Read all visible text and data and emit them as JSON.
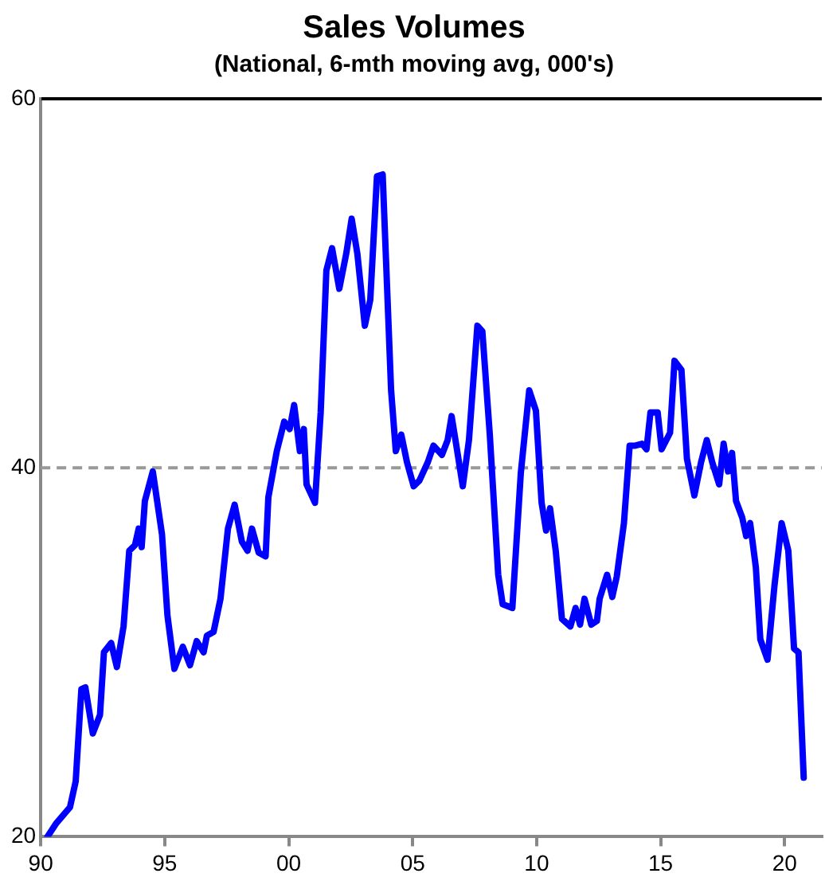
{
  "chart_data": {
    "type": "line",
    "title": "Sales Volumes",
    "subtitle": "(National, 6-mth moving avg, 000's)",
    "x": [
      1990.27,
      1990.61,
      1991.18,
      1991.41,
      1991.64,
      1991.8,
      1992.1,
      1992.39,
      1992.55,
      1992.84,
      1993.07,
      1993.34,
      1993.57,
      1993.8,
      1993.95,
      1994.07,
      1994.2,
      1994.52,
      1994.89,
      1995.11,
      1995.39,
      1995.73,
      1996.02,
      1996.29,
      1996.57,
      1996.7,
      1996.97,
      1997.25,
      1997.55,
      1997.82,
      1998.11,
      1998.34,
      1998.52,
      1998.79,
      1999.07,
      1999.18,
      1999.52,
      1999.82,
      2000.04,
      2000.22,
      2000.45,
      2000.61,
      2000.72,
      2001.06,
      2001.29,
      2001.52,
      2001.75,
      2002.04,
      2002.32,
      2002.54,
      2002.77,
      2003.07,
      2003.29,
      2003.56,
      2003.79,
      2004.13,
      2004.32,
      2004.54,
      2004.77,
      2005.04,
      2005.27,
      2005.61,
      2005.84,
      2006.18,
      2006.41,
      2006.57,
      2006.75,
      2007.02,
      2007.27,
      2007.61,
      2007.81,
      2008.11,
      2008.45,
      2008.63,
      2009.02,
      2009.36,
      2009.7,
      2009.97,
      2010.2,
      2010.38,
      2010.54,
      2010.77,
      2011.02,
      2011.36,
      2011.57,
      2011.75,
      2011.93,
      2012.2,
      2012.43,
      2012.54,
      2012.84,
      2013.05,
      2013.23,
      2013.52,
      2013.75,
      2013.98,
      2014.25,
      2014.43,
      2014.59,
      2014.88,
      2015.04,
      2015.38,
      2015.56,
      2015.84,
      2016.06,
      2016.36,
      2016.63,
      2016.86,
      2017.08,
      2017.36,
      2017.54,
      2017.72,
      2017.88,
      2018.04,
      2018.29,
      2018.45,
      2018.61,
      2018.84,
      2019.02,
      2019.31,
      2019.59,
      2019.88,
      2020.15,
      2020.38,
      2020.56,
      2020.77
    ],
    "series": [
      {
        "color": "#0000ff",
        "values": [
          20.0,
          20.7,
          21.6,
          23.0,
          28.0,
          28.1,
          25.6,
          26.6,
          30.0,
          30.5,
          29.2,
          31.4,
          35.5,
          35.8,
          36.7,
          35.7,
          38.2,
          39.8,
          36.4,
          32.0,
          29.1,
          30.3,
          29.3,
          30.6,
          30.0,
          30.9,
          31.1,
          32.9,
          36.7,
          38.0,
          36.0,
          35.5,
          36.7,
          35.4,
          35.2,
          38.4,
          40.9,
          42.5,
          42.1,
          43.4,
          40.9,
          42.1,
          39.1,
          38.1,
          43.0,
          50.7,
          51.9,
          49.7,
          51.6,
          53.5,
          51.6,
          47.7,
          49.1,
          55.8,
          55.9,
          44.2,
          40.9,
          41.8,
          40.3,
          39.0,
          39.3,
          40.3,
          41.2,
          40.7,
          41.5,
          42.8,
          41.3,
          39.0,
          41.5,
          47.7,
          47.4,
          41.8,
          34.2,
          32.6,
          32.4,
          39.7,
          44.2,
          43.1,
          38.1,
          36.6,
          37.8,
          35.5,
          31.8,
          31.4,
          32.4,
          31.5,
          32.9,
          31.5,
          31.7,
          32.9,
          34.2,
          33.0,
          34.1,
          37.0,
          41.2,
          41.2,
          41.3,
          41.0,
          43.0,
          43.0,
          41.0,
          41.9,
          45.8,
          45.3,
          40.5,
          38.5,
          40.3,
          41.5,
          40.3,
          39.1,
          41.3,
          39.8,
          40.8,
          38.2,
          37.3,
          36.3,
          37.0,
          34.6,
          30.7,
          29.6,
          33.6,
          37.0,
          35.5,
          30.2,
          30.0,
          23.2
        ]
      }
    ],
    "xlim": [
      1990,
      2021.5
    ],
    "xticks": [
      {
        "value": 1990,
        "label": "90"
      },
      {
        "value": 1995,
        "label": "95"
      },
      {
        "value": 2000,
        "label": "00"
      },
      {
        "value": 2005,
        "label": "05"
      },
      {
        "value": 2010,
        "label": "10"
      },
      {
        "value": 2015,
        "label": "15"
      },
      {
        "value": 2020,
        "label": "20"
      }
    ],
    "ylim": [
      20,
      60
    ],
    "yticks": [
      20,
      40,
      60
    ],
    "ref_lines": [
      {
        "axis": "y",
        "value": 40,
        "color": "#999999",
        "line_style": "dashed"
      }
    ],
    "grid": false,
    "legend": false,
    "marker": "none",
    "line_style": "solid"
  }
}
